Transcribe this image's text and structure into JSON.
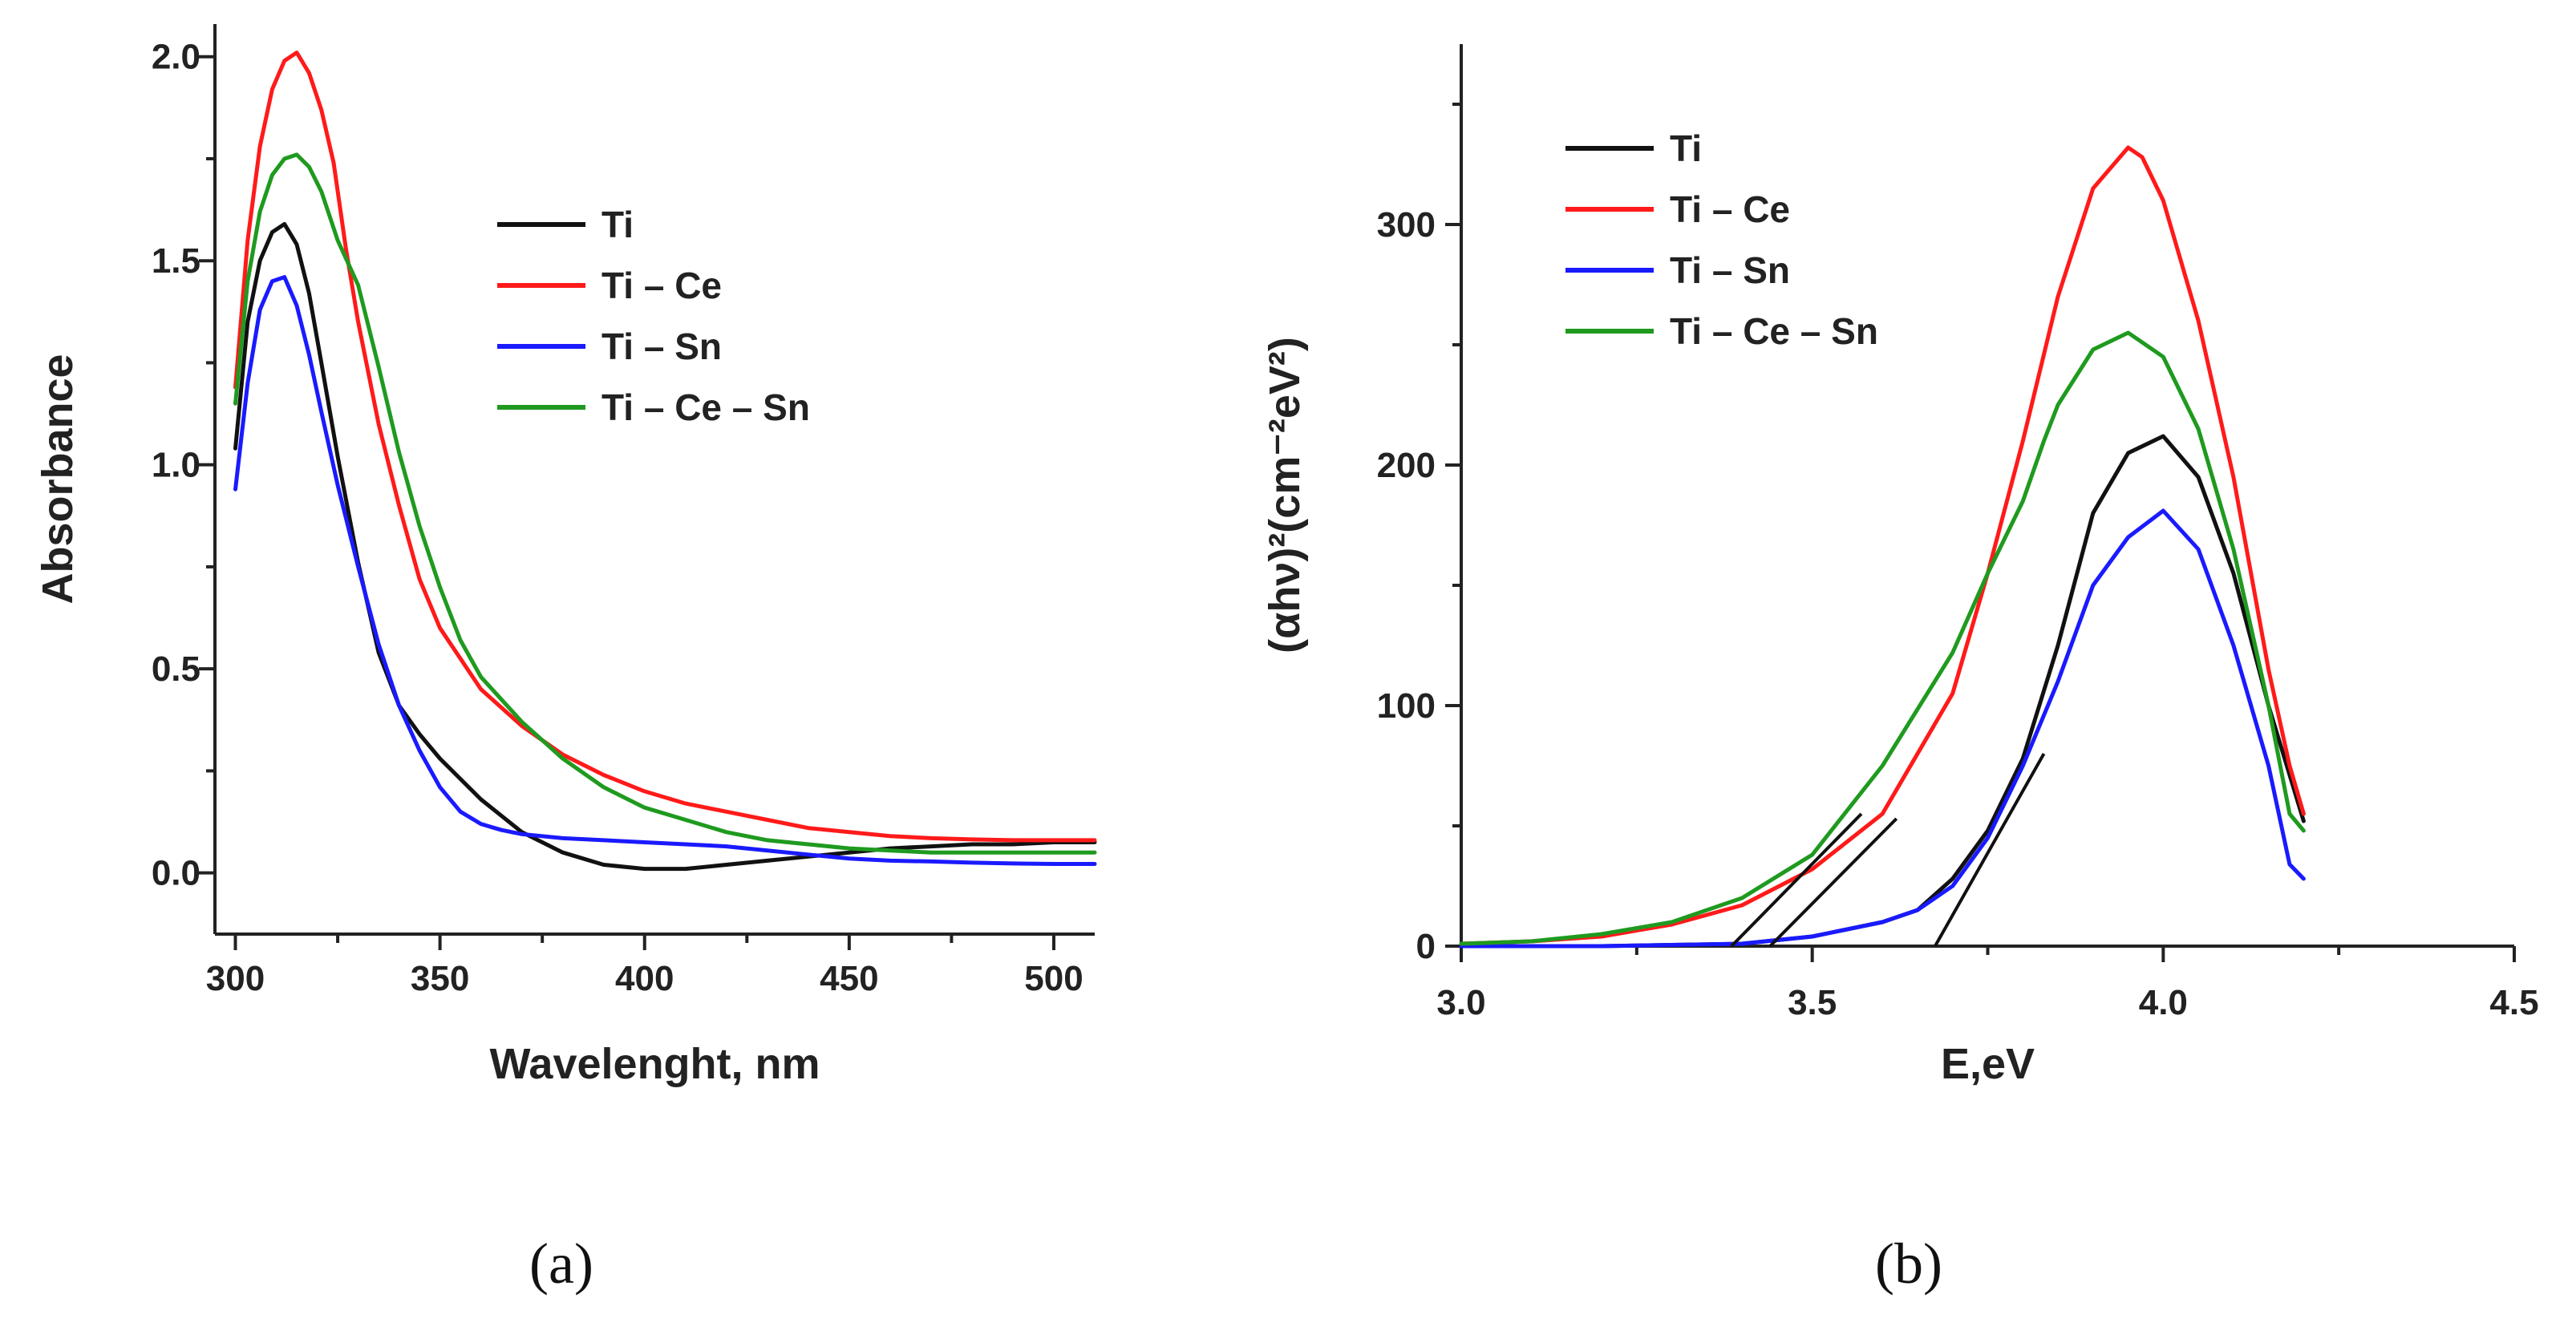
{
  "chart_data": [
    {
      "id": "a",
      "type": "line",
      "panel_label": "(a)",
      "xlabel": "Wavelenght, nm",
      "ylabel": "Absorbance",
      "xlim": [
        295,
        510
      ],
      "ylim": [
        -0.15,
        2.08
      ],
      "xticks": [
        300,
        350,
        400,
        450,
        500
      ],
      "yticks": [
        0.0,
        0.5,
        1.0,
        1.5,
        2.0
      ],
      "ytick_labels": [
        "0.0",
        "0.5",
        "1.0",
        "1.5",
        "2.0"
      ],
      "legend_position": "upper-right",
      "series": [
        {
          "name": "Ti",
          "color": "#111111",
          "x": [
            300,
            303,
            306,
            309,
            312,
            315,
            318,
            321,
            325,
            330,
            335,
            340,
            345,
            350,
            360,
            370,
            380,
            390,
            400,
            410,
            420,
            430,
            440,
            450,
            460,
            470,
            480,
            490,
            500,
            510
          ],
          "y": [
            1.04,
            1.35,
            1.5,
            1.57,
            1.59,
            1.54,
            1.42,
            1.25,
            1.02,
            0.76,
            0.54,
            0.41,
            0.34,
            0.28,
            0.18,
            0.1,
            0.05,
            0.02,
            0.01,
            0.01,
            0.02,
            0.03,
            0.04,
            0.05,
            0.06,
            0.065,
            0.07,
            0.07,
            0.075,
            0.075
          ]
        },
        {
          "name": "Ti – Ce",
          "color": "#ff1a1a",
          "x": [
            300,
            303,
            306,
            309,
            312,
            315,
            318,
            321,
            324,
            327,
            330,
            335,
            340,
            345,
            350,
            360,
            370,
            380,
            390,
            400,
            410,
            420,
            430,
            440,
            450,
            460,
            470,
            480,
            490,
            500,
            510
          ],
          "y": [
            1.19,
            1.55,
            1.78,
            1.92,
            1.99,
            2.01,
            1.96,
            1.87,
            1.74,
            1.53,
            1.35,
            1.1,
            0.9,
            0.72,
            0.6,
            0.45,
            0.36,
            0.29,
            0.24,
            0.2,
            0.17,
            0.15,
            0.13,
            0.11,
            0.1,
            0.09,
            0.085,
            0.082,
            0.08,
            0.08,
            0.08
          ]
        },
        {
          "name": "Ti – Sn",
          "color": "#1a1aff",
          "x": [
            300,
            303,
            306,
            309,
            312,
            315,
            318,
            321,
            325,
            330,
            335,
            340,
            345,
            350,
            355,
            360,
            365,
            370,
            380,
            390,
            400,
            410,
            420,
            430,
            440,
            450,
            460,
            470,
            480,
            490,
            500,
            510
          ],
          "y": [
            0.94,
            1.2,
            1.38,
            1.45,
            1.46,
            1.39,
            1.27,
            1.13,
            0.95,
            0.75,
            0.56,
            0.41,
            0.3,
            0.21,
            0.15,
            0.12,
            0.105,
            0.095,
            0.085,
            0.08,
            0.075,
            0.07,
            0.065,
            0.055,
            0.045,
            0.035,
            0.03,
            0.028,
            0.025,
            0.023,
            0.022,
            0.022
          ]
        },
        {
          "name": "Ti – Ce – Sn",
          "color": "#1f9a1f",
          "x": [
            300,
            303,
            306,
            309,
            312,
            315,
            318,
            321,
            324,
            325,
            330,
            335,
            340,
            345,
            350,
            355,
            360,
            370,
            380,
            390,
            400,
            410,
            420,
            430,
            440,
            450,
            460,
            470,
            480,
            490,
            500,
            510
          ],
          "y": [
            1.15,
            1.45,
            1.62,
            1.71,
            1.75,
            1.76,
            1.73,
            1.67,
            1.58,
            1.55,
            1.44,
            1.24,
            1.03,
            0.85,
            0.7,
            0.57,
            0.48,
            0.37,
            0.28,
            0.21,
            0.16,
            0.13,
            0.1,
            0.08,
            0.07,
            0.06,
            0.055,
            0.05,
            0.05,
            0.05,
            0.05,
            0.05
          ]
        }
      ]
    },
    {
      "id": "b",
      "type": "line",
      "panel_label": "(b)",
      "xlabel": "E,eV",
      "ylabel": "(αhν)²(cm⁻²eV²)",
      "xlim": [
        3.0,
        4.5
      ],
      "ylim": [
        0,
        375
      ],
      "xticks": [
        3.0,
        3.5,
        4.0,
        4.5
      ],
      "xtick_labels": [
        "3.0",
        "3.5",
        "4.0",
        "4.5"
      ],
      "yticks": [
        0,
        100,
        200,
        300
      ],
      "legend_position": "upper-left",
      "series": [
        {
          "name": "Ti",
          "color": "#111111",
          "x": [
            3.0,
            3.2,
            3.4,
            3.5,
            3.6,
            3.65,
            3.7,
            3.75,
            3.8,
            3.85,
            3.9,
            3.95,
            4.0,
            4.05,
            4.1,
            4.15,
            4.2
          ],
          "y": [
            0,
            0,
            1,
            4,
            10,
            15,
            28,
            48,
            78,
            125,
            180,
            205,
            212,
            195,
            155,
            100,
            52
          ]
        },
        {
          "name": "Ti – Ce",
          "color": "#ff1a1a",
          "x": [
            3.0,
            3.1,
            3.2,
            3.3,
            3.4,
            3.5,
            3.6,
            3.7,
            3.75,
            3.8,
            3.85,
            3.9,
            3.95,
            3.97,
            4.0,
            4.05,
            4.1,
            4.15,
            4.18,
            4.2
          ],
          "y": [
            1,
            2,
            4,
            9,
            17,
            32,
            55,
            105,
            155,
            210,
            270,
            315,
            332,
            328,
            310,
            260,
            195,
            115,
            75,
            55
          ]
        },
        {
          "name": "Ti – Sn",
          "color": "#1a1aff",
          "x": [
            3.0,
            3.2,
            3.4,
            3.5,
            3.6,
            3.65,
            3.7,
            3.75,
            3.8,
            3.85,
            3.9,
            3.95,
            4.0,
            4.05,
            4.1,
            4.15,
            4.18,
            4.2
          ],
          "y": [
            0,
            0,
            1,
            4,
            10,
            15,
            25,
            45,
            75,
            110,
            150,
            170,
            181,
            165,
            125,
            75,
            34,
            28
          ]
        },
        {
          "name": "Ti – Ce – Sn",
          "color": "#1f9a1f",
          "x": [
            3.0,
            3.1,
            3.2,
            3.3,
            3.4,
            3.5,
            3.6,
            3.7,
            3.75,
            3.8,
            3.83,
            3.85,
            3.9,
            3.95,
            4.0,
            4.05,
            4.1,
            4.15,
            4.18,
            4.2
          ],
          "y": [
            1,
            2,
            5,
            10,
            20,
            38,
            75,
            122,
            155,
            185,
            210,
            225,
            248,
            255,
            245,
            215,
            165,
            100,
            55,
            48
          ]
        }
      ],
      "tangents": [
        {
          "color": "#111111",
          "x": [
            3.385,
            3.57
          ],
          "y": [
            0,
            55
          ]
        },
        {
          "color": "#111111",
          "x": [
            3.44,
            3.62
          ],
          "y": [
            0,
            53
          ]
        },
        {
          "color": "#111111",
          "x": [
            3.675,
            3.83
          ],
          "y": [
            0,
            80
          ]
        }
      ]
    }
  ]
}
